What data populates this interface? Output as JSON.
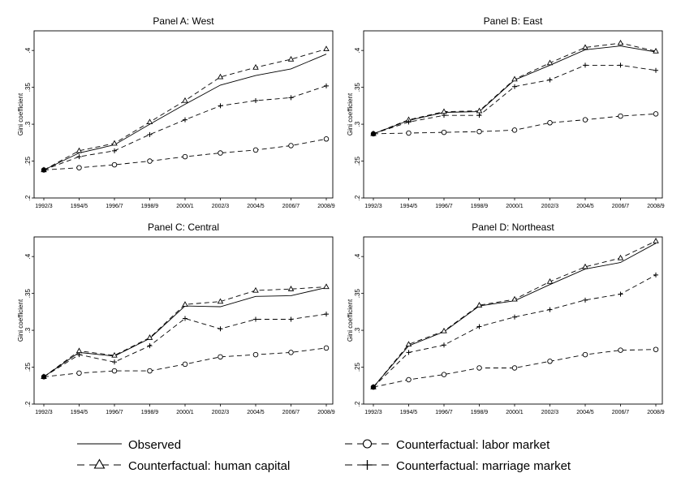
{
  "chart_data": [
    {
      "type": "line",
      "title": "Panel A: West",
      "ylabel": "Gini coefficient",
      "xlabel": "",
      "categories": [
        "1992/3",
        "1994/5",
        "1996/7",
        "1998/9",
        "2000/1",
        "2002/3",
        "2004/5",
        "2006/7",
        "2008/9"
      ],
      "yticks": [
        ".2",
        ".25",
        ".3",
        ".35",
        ".4"
      ],
      "ylim": [
        0.2,
        0.42
      ],
      "grid": false,
      "series": [
        {
          "name": "Observed",
          "values": [
            0.238,
            0.261,
            0.272,
            0.3,
            0.327,
            0.353,
            0.366,
            0.375,
            0.395
          ]
        },
        {
          "name": "Counterfactual: human capital",
          "values": [
            0.238,
            0.264,
            0.274,
            0.303,
            0.332,
            0.364,
            0.377,
            0.388,
            0.402
          ]
        },
        {
          "name": "Counterfactual: labor market",
          "values": [
            0.238,
            0.241,
            0.245,
            0.25,
            0.256,
            0.261,
            0.265,
            0.271,
            0.28
          ]
        },
        {
          "name": "Counterfactual: marriage market",
          "values": [
            0.238,
            0.256,
            0.264,
            0.286,
            0.306,
            0.325,
            0.332,
            0.336,
            0.352
          ]
        }
      ]
    },
    {
      "type": "line",
      "title": "Panel B: East",
      "ylabel": "Gini coefficient",
      "xlabel": "",
      "categories": [
        "1992/3",
        "1994/5",
        "1996/7",
        "1998/9",
        "2000/1",
        "2002/3",
        "2004/5",
        "2006/7",
        "2008/9"
      ],
      "yticks": [
        ".2",
        ".25",
        ".3",
        ".35",
        ".4"
      ],
      "ylim": [
        0.2,
        0.42
      ],
      "grid": false,
      "series": [
        {
          "name": "Observed",
          "values": [
            0.287,
            0.305,
            0.316,
            0.317,
            0.36,
            0.38,
            0.401,
            0.406,
            0.398
          ]
        },
        {
          "name": "Counterfactual: human capital",
          "values": [
            0.287,
            0.306,
            0.317,
            0.318,
            0.361,
            0.383,
            0.404,
            0.41,
            0.399
          ]
        },
        {
          "name": "Counterfactual: labor market",
          "values": [
            0.287,
            0.288,
            0.289,
            0.29,
            0.292,
            0.302,
            0.306,
            0.311,
            0.314
          ]
        },
        {
          "name": "Counterfactual: marriage market",
          "values": [
            0.287,
            0.303,
            0.312,
            0.312,
            0.351,
            0.36,
            0.38,
            0.38,
            0.373
          ]
        }
      ]
    },
    {
      "type": "line",
      "title": "Panel C: Central",
      "ylabel": "Gini coefficient",
      "xlabel": "",
      "categories": [
        "1992/3",
        "1994/5",
        "1996/7",
        "1998/9",
        "2000/1",
        "2002/3",
        "2004/5",
        "2006/7",
        "2008/9"
      ],
      "yticks": [
        ".2",
        ".25",
        ".3",
        ".35",
        ".4"
      ],
      "ylim": [
        0.2,
        0.42
      ],
      "grid": false,
      "series": [
        {
          "name": "Observed",
          "values": [
            0.237,
            0.27,
            0.265,
            0.289,
            0.333,
            0.332,
            0.346,
            0.347,
            0.358
          ]
        },
        {
          "name": "Counterfactual: human capital",
          "values": [
            0.237,
            0.272,
            0.266,
            0.29,
            0.335,
            0.339,
            0.354,
            0.356,
            0.359
          ]
        },
        {
          "name": "Counterfactual: labor market",
          "values": [
            0.237,
            0.242,
            0.245,
            0.245,
            0.254,
            0.264,
            0.267,
            0.27,
            0.276
          ]
        },
        {
          "name": "Counterfactual: marriage market",
          "values": [
            0.237,
            0.267,
            0.257,
            0.279,
            0.316,
            0.302,
            0.315,
            0.315,
            0.322
          ]
        }
      ]
    },
    {
      "type": "line",
      "title": "Panel D: Northeast",
      "ylabel": "Gini coefficient",
      "xlabel": "",
      "categories": [
        "1992/3",
        "1994/5",
        "1996/7",
        "1998/9",
        "2000/1",
        "2002/3",
        "2004/5",
        "2006/7",
        "2008/9"
      ],
      "yticks": [
        ".2",
        ".25",
        ".3",
        ".35",
        ".4"
      ],
      "ylim": [
        0.2,
        0.42
      ],
      "grid": false,
      "series": [
        {
          "name": "Observed",
          "values": [
            0.223,
            0.279,
            0.298,
            0.333,
            0.34,
            0.362,
            0.383,
            0.392,
            0.418
          ]
        },
        {
          "name": "Counterfactual: human capital",
          "values": [
            0.223,
            0.281,
            0.299,
            0.334,
            0.342,
            0.366,
            0.386,
            0.398,
            0.421
          ]
        },
        {
          "name": "Counterfactual: labor market",
          "values": [
            0.223,
            0.233,
            0.24,
            0.249,
            0.249,
            0.258,
            0.267,
            0.273,
            0.274
          ]
        },
        {
          "name": "Counterfactual: marriage market",
          "values": [
            0.223,
            0.27,
            0.28,
            0.305,
            0.318,
            0.328,
            0.341,
            0.349,
            0.375
          ]
        }
      ]
    }
  ],
  "legend": {
    "position": "bottom",
    "items": [
      {
        "label": "Observed",
        "style": "solid",
        "marker": "none"
      },
      {
        "label": "Counterfactual: labor market",
        "style": "dashed",
        "marker": "circle"
      },
      {
        "label": "Counterfactual: human capital",
        "style": "dashed",
        "marker": "triangle"
      },
      {
        "label": "Counterfactual: marriage market",
        "style": "dashed",
        "marker": "plus"
      }
    ]
  }
}
